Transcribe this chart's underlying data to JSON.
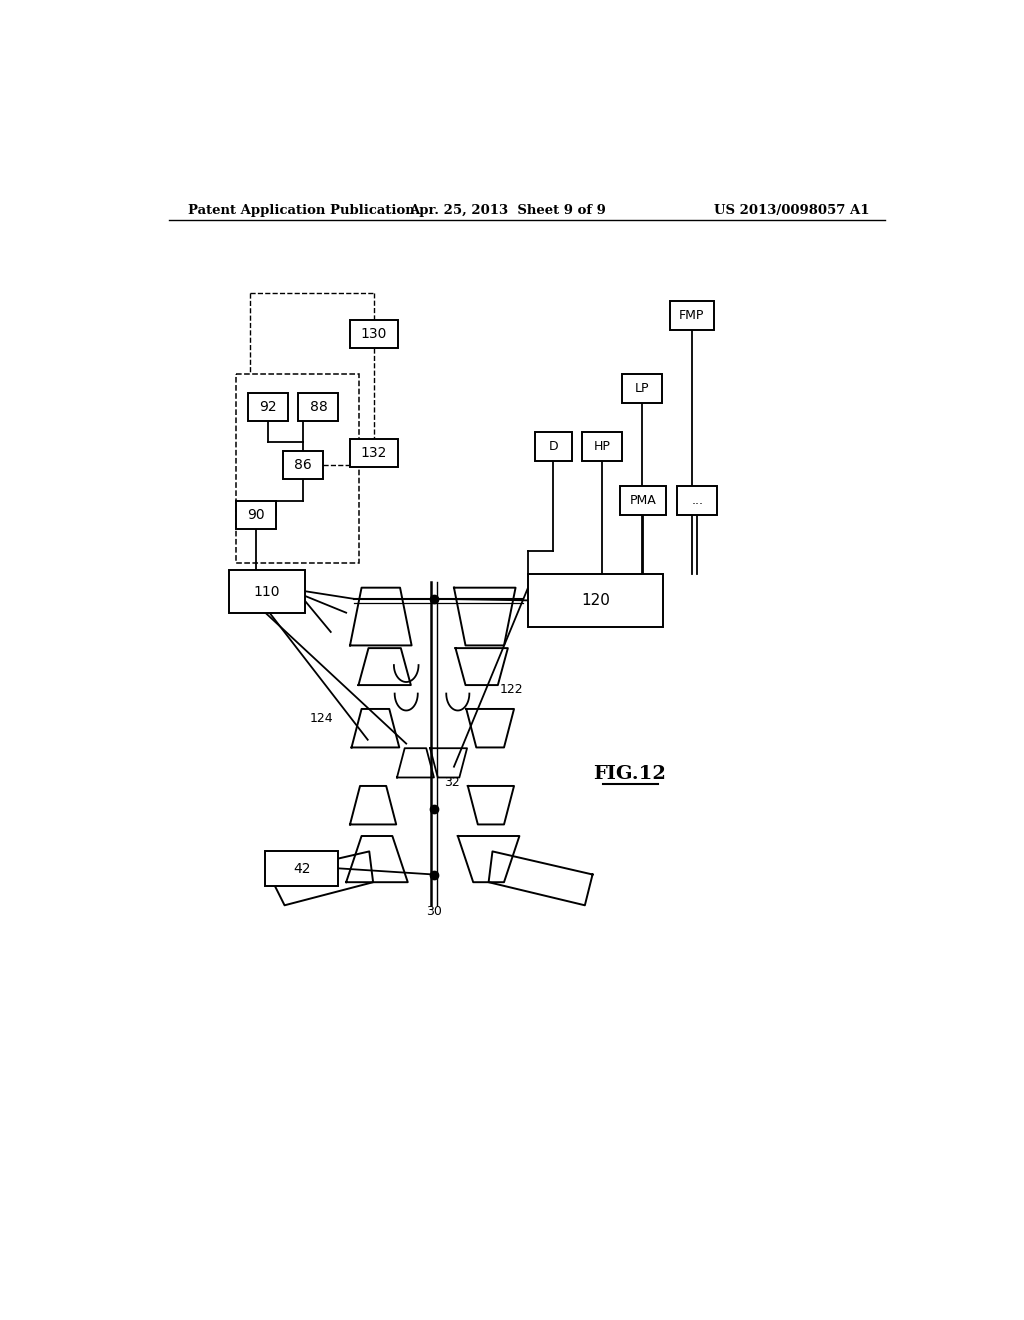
{
  "bg_color": "#ffffff",
  "header_left": "Patent Application Publication",
  "header_center": "Apr. 25, 2013  Sheet 9 of 9",
  "header_right": "US 2013/0098057 A1",
  "fig_label": "FIG.12"
}
